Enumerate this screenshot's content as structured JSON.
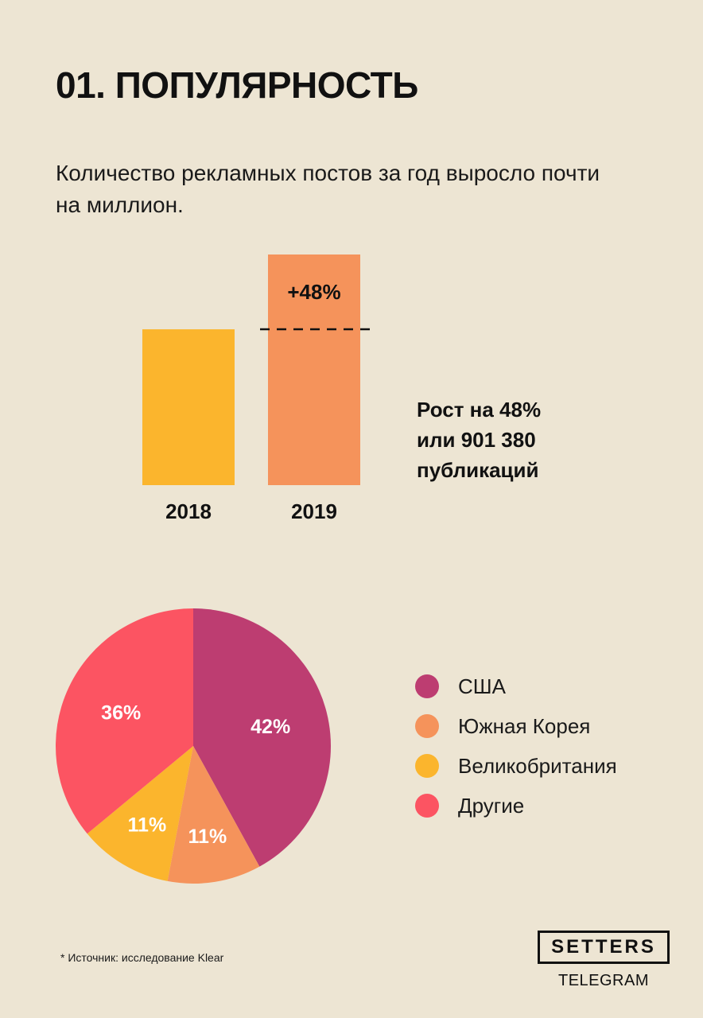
{
  "title": "01. ПОПУЛЯРНОСТЬ",
  "subtitle": "Количество рекламных постов за год выросло почти на миллион.",
  "growth_note": [
    "Рост на 48%",
    "или 901 380",
    "публикаций"
  ],
  "footnote": "* Источник: исследование Klear",
  "brand": {
    "name": "SETTERS",
    "sub": "TELEGRAM"
  },
  "chart_data": [
    {
      "type": "bar",
      "categories": [
        "2018",
        "2019"
      ],
      "values": [
        100,
        148
      ],
      "annotations": [
        {
          "category": "2019",
          "text": "+48%"
        }
      ],
      "reference_line": {
        "value": 100,
        "style": "dashed"
      },
      "colors": [
        "#fbb52d",
        "#f5935b"
      ],
      "grid": false
    },
    {
      "type": "pie",
      "labels": [
        "США",
        "Южная Корея",
        "Великобритания",
        "Другие"
      ],
      "values": [
        42,
        11,
        11,
        36
      ],
      "value_labels": [
        "42%",
        "11%",
        "11%",
        "36%"
      ],
      "colors": [
        "#bd3d71",
        "#f5935b",
        "#fbb52d",
        "#fc5462"
      ],
      "start_angle_deg": 0,
      "direction": "clockwise",
      "legend": "right"
    }
  ]
}
